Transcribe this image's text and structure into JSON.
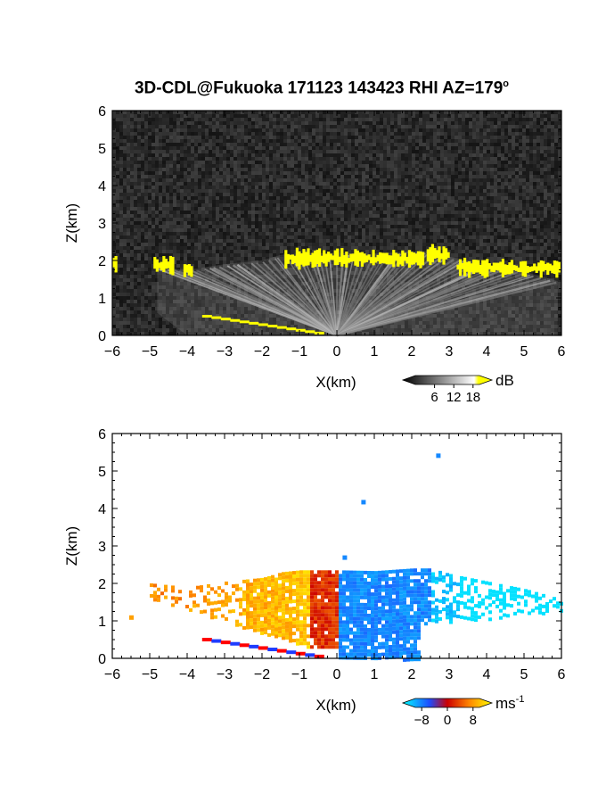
{
  "title": {
    "text": "3D-CDL@Fukuoka 171123 143423 RHI AZ=179",
    "superscript": "o"
  },
  "colors": {
    "background": "#ffffff",
    "reflectivity_panel_bg": "#151515",
    "high_intensity": "#ffff00",
    "approaching": "#1e4cff",
    "receding": "#ff3a00"
  },
  "chart_data": [
    {
      "type": "heatmap",
      "panel": "top",
      "quantity": "backscatter intensity",
      "xlabel": "X(km)",
      "ylabel": "Z(km)",
      "xlim": [
        -6,
        6
      ],
      "ylim": [
        0,
        6
      ],
      "xticks": [
        "-6",
        "-5",
        "-4",
        "-3",
        "-2",
        "-1",
        "0",
        "1",
        "2",
        "3",
        "4",
        "5",
        "6"
      ],
      "yticks": [
        "0",
        "1",
        "2",
        "3",
        "4",
        "5",
        "6"
      ],
      "colorbar": {
        "unit": "dB",
        "ticks": [
          "6",
          "12",
          "18"
        ],
        "range": [
          0,
          20
        ]
      },
      "layer_top_km": [
        {
          "x": -6.0,
          "z": 1.98
        },
        {
          "x": -5.0,
          "z": 1.95
        },
        {
          "x": -4.0,
          "z": 1.85
        },
        {
          "x": -3.0,
          "z": 2.0
        },
        {
          "x": -2.0,
          "z": 2.1
        },
        {
          "x": -1.5,
          "z": 2.25
        },
        {
          "x": -1.0,
          "z": 2.3
        },
        {
          "x": 0.0,
          "z": 2.3
        },
        {
          "x": 1.0,
          "z": 2.28
        },
        {
          "x": 2.0,
          "z": 2.35
        },
        {
          "x": 2.5,
          "z": 2.35
        },
        {
          "x": 3.0,
          "z": 2.2
        },
        {
          "x": 4.0,
          "z": 2.0
        },
        {
          "x": 5.0,
          "z": 1.8
        },
        {
          "x": 5.9,
          "z": 1.55
        }
      ],
      "yellow_cloud_base_km": [
        {
          "x": -6.0,
          "x2": -5.9,
          "z": 1.98
        },
        {
          "x": -4.9,
          "x2": -4.4,
          "z": 1.95
        },
        {
          "x": -4.1,
          "x2": -3.9,
          "z": 1.8
        },
        {
          "x": -1.4,
          "x2": 2.3,
          "z": 2.1
        },
        {
          "x": 2.4,
          "x2": 3.0,
          "z": 2.2
        },
        {
          "x": 3.2,
          "x2": 5.9,
          "z": 1.85
        }
      ]
    },
    {
      "type": "heatmap",
      "panel": "bottom",
      "quantity": "radial velocity",
      "xlabel": "X(km)",
      "ylabel": "Z(km)",
      "xlim": [
        -6,
        6
      ],
      "ylim": [
        0,
        6
      ],
      "xticks": [
        "-6",
        "-5",
        "-4",
        "-3",
        "-2",
        "-1",
        "0",
        "1",
        "2",
        "3",
        "4",
        "5",
        "6"
      ],
      "yticks": [
        "0",
        "1",
        "2",
        "3",
        "4",
        "5",
        "6"
      ],
      "colorbar": {
        "unit": "ms",
        "unit_exponent": "-1",
        "ticks": [
          "−8",
          "0",
          "8"
        ],
        "range": [
          -10,
          10
        ]
      },
      "isolated_points": [
        {
          "x": 2.7,
          "z": 5.42,
          "v": -6
        },
        {
          "x": 0.7,
          "z": 4.18,
          "v": -6
        },
        {
          "x": -5.5,
          "z": 1.1,
          "v": 6
        },
        {
          "x": 0.2,
          "z": 2.7,
          "v": -6
        }
      ]
    }
  ]
}
